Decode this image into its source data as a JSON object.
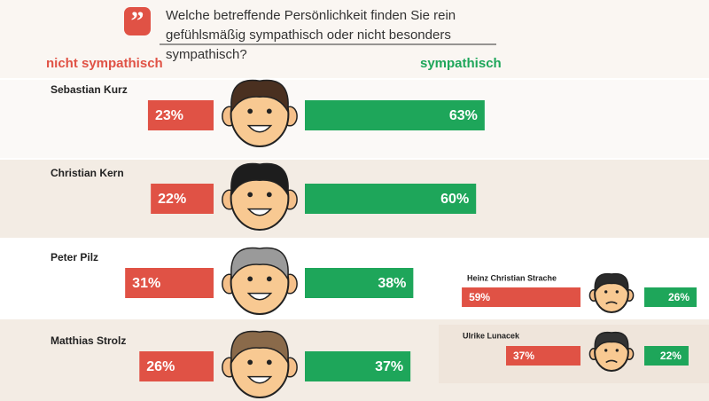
{
  "chart_data": {
    "type": "bar",
    "title": "Welche betreffende Persönlichkeit finden Sie rein gefühlsmäßig sympathisch oder nicht besonders sympathisch?",
    "categories": [
      "Sebastian Kurz",
      "Christian Kern",
      "Peter Pilz",
      "Matthias Strolz",
      "Heinz Christian Strache",
      "Ulrike Lunacek"
    ],
    "series": [
      {
        "name": "nicht sympathisch",
        "color": "#e05245",
        "values": [
          23,
          22,
          31,
          26,
          59,
          37
        ],
        "value_labels": [
          "23%",
          "22%",
          "31%",
          "26%",
          "59%",
          "37%"
        ]
      },
      {
        "name": "sympathisch",
        "color": "#1ea65a",
        "values": [
          63,
          60,
          38,
          37,
          26,
          22
        ],
        "value_labels": [
          "63%",
          "60%",
          "38%",
          "37%",
          "26%",
          "22%"
        ]
      }
    ]
  }
}
